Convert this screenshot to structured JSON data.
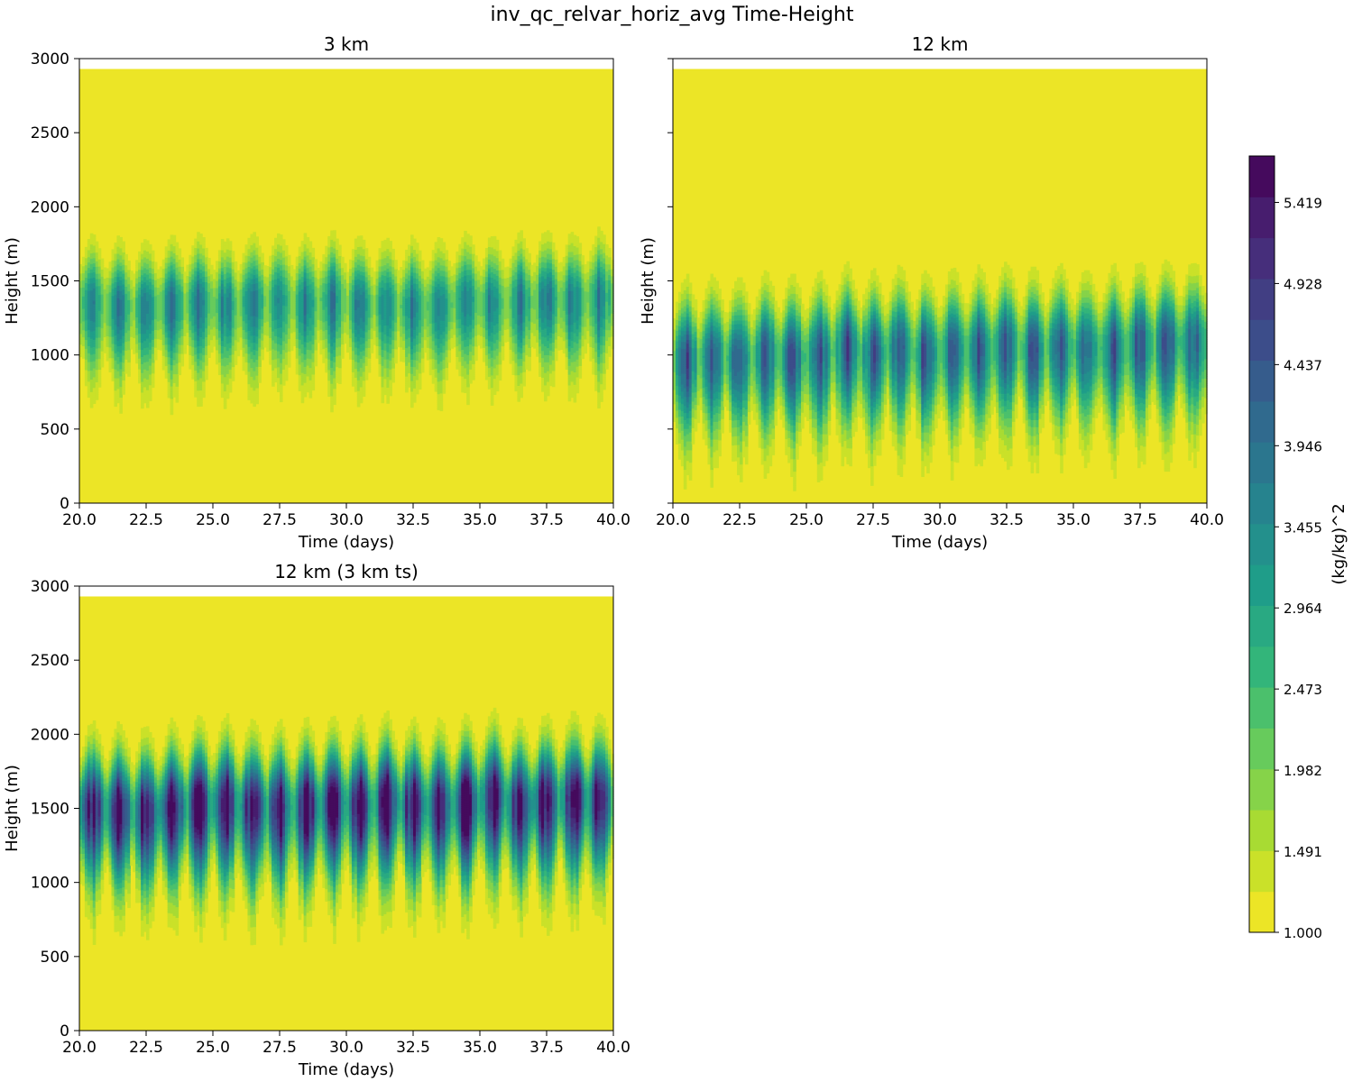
{
  "figure": {
    "title": "inv_qc_relvar_horiz_avg Time-Height"
  },
  "chart_data": [
    {
      "type": "heatmap",
      "title": "3 km",
      "xlabel": "Time (days)",
      "ylabel": "Height (m)",
      "xlim": [
        20.0,
        40.0
      ],
      "ylim": [
        0,
        3000
      ],
      "xticks": [
        "20.0",
        "22.5",
        "25.0",
        "27.5",
        "30.0",
        "32.5",
        "35.0",
        "37.5",
        "40.0"
      ],
      "yticks": [
        "0",
        "500",
        "1000",
        "1500",
        "2000",
        "2500",
        "3000"
      ],
      "show_yticklabels": true,
      "data_top": 2930,
      "band": {
        "center_m": 1330,
        "halfwidth_m": 200,
        "peak_value": 3.4,
        "periods_days": 1.0,
        "trend_m_per_day": 2
      }
    },
    {
      "type": "heatmap",
      "title": "12 km",
      "xlabel": "Time (days)",
      "ylabel": "Height (m)",
      "xlim": [
        20.0,
        40.0
      ],
      "ylim": [
        0,
        3000
      ],
      "xticks": [
        "20.0",
        "22.5",
        "25.0",
        "27.5",
        "30.0",
        "32.5",
        "35.0",
        "37.5",
        "40.0"
      ],
      "yticks": [
        "0",
        "500",
        "1000",
        "1500",
        "2000",
        "2500",
        "3000"
      ],
      "show_yticklabels": false,
      "data_top": 2930,
      "band": {
        "center_m": 990,
        "halfwidth_m": 230,
        "peak_value": 4.1,
        "periods_days": 1.0,
        "trend_m_per_day": 5
      }
    },
    {
      "type": "heatmap",
      "title": "12 km (3 km ts)",
      "xlabel": "Time (days)",
      "ylabel": "Height (m)",
      "xlim": [
        20.0,
        40.0
      ],
      "ylim": [
        0,
        3000
      ],
      "xticks": [
        "20.0",
        "22.5",
        "25.0",
        "27.5",
        "30.0",
        "32.5",
        "35.0",
        "37.5",
        "40.0"
      ],
      "yticks": [
        "0",
        "500",
        "1000",
        "1500",
        "2000",
        "2500",
        "3000"
      ],
      "show_yticklabels": true,
      "data_top": 2930,
      "band": {
        "center_m": 1490,
        "halfwidth_m": 230,
        "peak_value": 5.4,
        "periods_days": 1.0,
        "trend_m_per_day": 4
      }
    }
  ],
  "colorbar": {
    "label": "(kg/kg)^2",
    "min": 1.0,
    "max": 5.7,
    "ticks": [
      "1.000",
      "1.491",
      "1.982",
      "2.473",
      "2.964",
      "3.455",
      "3.946",
      "4.437",
      "4.928",
      "5.419"
    ],
    "levels": 19,
    "colors": [
      "#fde725",
      "#b5de2b",
      "#6ece58",
      "#35b779",
      "#1f9e89",
      "#26828e",
      "#31688e",
      "#3e4989",
      "#482878",
      "#440154"
    ]
  }
}
